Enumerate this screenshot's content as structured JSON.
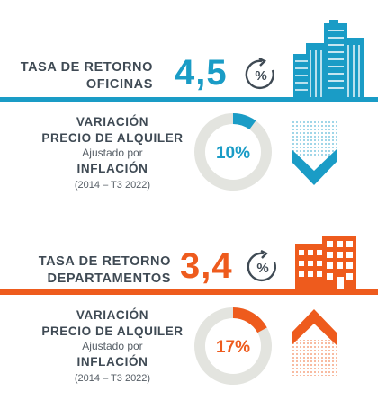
{
  "colors": {
    "teal": "#1a9cc6",
    "orange": "#ee5b1d",
    "text": "#3f4a54",
    "ring_track": "#e3e4df"
  },
  "offices": {
    "title_line1": "TASA DE RETORNO",
    "title_line2": "OFICINAS",
    "rate": "4,5",
    "rate_icon_symbol": "%",
    "variation": {
      "line1": "VARIACIÓN",
      "line2": "PRECIO DE ALQUILER",
      "line3": "Ajustado por",
      "line4": "INFLACIÓN",
      "line5": "(2014 – T3 2022)"
    },
    "donut_label": "10%",
    "donut_fraction": 0.1,
    "trend_icon": "arrow-down-icon",
    "building_icon": "office-towers-icon"
  },
  "apartments": {
    "title_line1": "TASA DE RETORNO",
    "title_line2": "DEPARTAMENTOS",
    "rate": "3,4",
    "rate_icon_symbol": "%",
    "variation": {
      "line1": "VARIACIÓN",
      "line2": "PRECIO DE ALQUILER",
      "line3": "Ajustado por",
      "line4": "INFLACIÓN",
      "line5": "(2014 – T3 2022)"
    },
    "donut_label": "17%",
    "donut_fraction": 0.17,
    "trend_icon": "arrow-up-icon",
    "building_icon": "apartment-building-icon"
  }
}
